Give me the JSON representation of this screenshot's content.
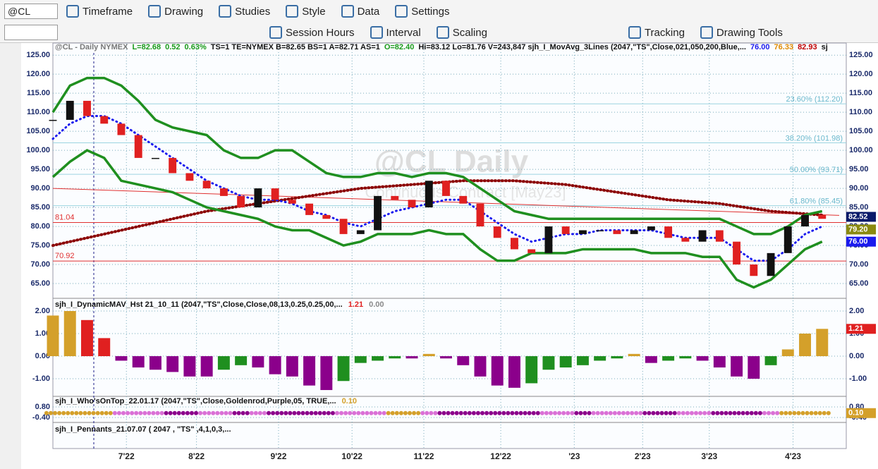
{
  "toolbar": {
    "symbol": "@CL",
    "row1": [
      "Timeframe",
      "Drawing",
      "Studies",
      "Style",
      "Data",
      "Settings"
    ],
    "row2": [
      "Session Hours",
      "Interval",
      "Scaling",
      "Tracking",
      "Drawing Tools"
    ]
  },
  "chart": {
    "header": [
      {
        "text": "@CL - Daily  NYMEX",
        "color": "#777"
      },
      {
        "text": "L=82.68",
        "color": "#1a9a1a"
      },
      {
        "text": "0.52",
        "color": "#1a9a1a"
      },
      {
        "text": "0.63%",
        "color": "#1a9a1a"
      },
      {
        "text": "TS=1  TE=NYMEX  B=82.65  BS=1  A=82.71  AS=1",
        "color": "#111"
      },
      {
        "text": "O=82.40",
        "color": "#1a9a1a"
      },
      {
        "text": "Hi=83.12  Lo=81.76  V=243,847  sjh_I_MovAvg_3Lines (2047,\"TS\",Close,021,050,200,Blue,...",
        "color": "#111"
      },
      {
        "text": "76.00",
        "color": "#1a1aee"
      },
      {
        "text": "76.33",
        "color": "#e08a00"
      },
      {
        "text": "82.93",
        "color": "#c00000"
      },
      {
        "text": "sj",
        "color": "#111"
      }
    ],
    "watermark": "@CL Daily",
    "watermark_sub": "Continuous Contract [May23]",
    "xlim": [
      0,
      46
    ],
    "xticks": [
      {
        "value": 4.3,
        "label": "7'22"
      },
      {
        "value": 8.4,
        "label": "8'22"
      },
      {
        "value": 13.2,
        "label": "9'22"
      },
      {
        "value": 17.5,
        "label": "10'22"
      },
      {
        "value": 21.7,
        "label": "11'22"
      },
      {
        "value": 26.2,
        "label": "12'22"
      },
      {
        "value": 30.5,
        "label": "'23"
      },
      {
        "value": 34.5,
        "label": "2'23"
      },
      {
        "value": 38.4,
        "label": "3'23"
      },
      {
        "value": 43.3,
        "label": "4'23"
      }
    ],
    "x": [
      0,
      1,
      2,
      3,
      4,
      5,
      6,
      7,
      8,
      9,
      10,
      11,
      12,
      13,
      14,
      15,
      16,
      17,
      18,
      19,
      20,
      21,
      22,
      23,
      24,
      25,
      26,
      27,
      28,
      29,
      30,
      31,
      32,
      33,
      34,
      35,
      36,
      37,
      38,
      39,
      40,
      41,
      42,
      43,
      44,
      45
    ],
    "price": {
      "ylim": [
        61.3,
        128
      ],
      "yticks": [
        {
          "value": 125,
          "label": "125.00"
        },
        {
          "value": 120,
          "label": "120.00"
        },
        {
          "value": 115,
          "label": "115.00"
        },
        {
          "value": 110,
          "label": "110.00"
        },
        {
          "value": 105,
          "label": "105.00"
        },
        {
          "value": 100,
          "label": "100.00"
        },
        {
          "value": 95,
          "label": "95.00"
        },
        {
          "value": 90,
          "label": "90.00"
        },
        {
          "value": 85,
          "label": "85.00"
        },
        {
          "value": 80,
          "label": "80.00"
        },
        {
          "value": 75,
          "label": "75.00"
        },
        {
          "value": 70,
          "label": "70.00"
        },
        {
          "value": 65,
          "label": "65.00"
        }
      ],
      "close": [
        108,
        113,
        109,
        107,
        104,
        98,
        98,
        94,
        92,
        90,
        88,
        85,
        90,
        87,
        86,
        83,
        82,
        78,
        79,
        88,
        87,
        85,
        92,
        88,
        86,
        80,
        77,
        74,
        73,
        80,
        78,
        79,
        79,
        78,
        79,
        80,
        77,
        76,
        79,
        76,
        70,
        67,
        73,
        80,
        83,
        82
      ],
      "up_color": "#111111",
      "down_color": "#e02020",
      "series": [
        {
          "color": "#1f8f1f",
          "width": 3.5,
          "dotted": false,
          "values": [
            110,
            117,
            119,
            119,
            117,
            113,
            108,
            106,
            105,
            104,
            100,
            98,
            98,
            100,
            100,
            97,
            94,
            93,
            93,
            94,
            94,
            93,
            94,
            94,
            93,
            90,
            87,
            84,
            83,
            82,
            82,
            82,
            82,
            82,
            82,
            82,
            82,
            82,
            82,
            82,
            80,
            78,
            78,
            80,
            83,
            84
          ]
        },
        {
          "color": "#1f8f1f",
          "width": 3.5,
          "dotted": false,
          "values": [
            93,
            97,
            100,
            98,
            92,
            91,
            90,
            89,
            87,
            85,
            84,
            83,
            82,
            80,
            79,
            79,
            77,
            75,
            76,
            78,
            78,
            78,
            79,
            78,
            78,
            74,
            71,
            71,
            73,
            73,
            73,
            74,
            74,
            74,
            74,
            73,
            73,
            73,
            72,
            72,
            66,
            64,
            66,
            70,
            74,
            76
          ]
        },
        {
          "color": "#1a1aee",
          "width": 3,
          "dotted": true,
          "values": [
            103,
            107,
            109,
            109,
            107,
            104,
            101,
            98,
            95,
            92,
            90,
            88,
            87,
            87,
            86,
            84,
            83,
            81,
            80,
            82,
            84,
            85,
            86,
            87,
            87,
            84,
            81,
            78,
            76,
            77,
            78,
            78,
            79,
            79,
            79,
            79,
            78,
            77,
            77,
            77,
            74,
            71,
            71,
            74,
            78,
            80
          ]
        }
      ],
      "ma200": {
        "color": "#8b0000",
        "x": [
          0,
          3,
          6,
          9,
          12,
          15,
          18,
          21,
          24,
          27,
          30,
          33,
          36,
          39,
          42,
          45
        ],
        "values": [
          75,
          78,
          81,
          84,
          86,
          88,
          90,
          91,
          92,
          92,
          91,
          89,
          87,
          86,
          84,
          83
        ]
      },
      "trendline": {
        "color": "#e03030",
        "x": [
          0,
          46
        ],
        "values": [
          90,
          82.9
        ]
      },
      "hlines": [
        {
          "value": 81.04,
          "color": "#e03030"
        },
        {
          "value": 70.92,
          "color": "#e03030"
        }
      ],
      "fib": [
        {
          "value": 112.2,
          "label": "23.60% (112.20)"
        },
        {
          "value": 101.98,
          "label": "38.20% (101.98)"
        },
        {
          "value": 93.71,
          "label": "50.00% (93.71)"
        },
        {
          "value": 85.45,
          "label": "61.80% (85.45)"
        }
      ],
      "flags": [
        {
          "value": 82.52,
          "label": "82.52",
          "color": "#0a1a6a"
        },
        {
          "value": 79.2,
          "label": "79.20",
          "color": "#8a8a10"
        },
        {
          "value": 76,
          "label": "76.00",
          "color": "#1a1aee"
        }
      ]
    },
    "histogram": {
      "title": "sjh_I_DynamicMAV_Hst 21_10_11 (2047,\"TS\",Close,Close,08,13,0.25,0.25,00,...",
      "readouts": [
        {
          "label": "1.21",
          "color": "#e02020"
        },
        {
          "label": "0.00",
          "color": "#888"
        }
      ],
      "ylim": [
        -1.78,
        2.5
      ],
      "yticks": [
        {
          "value": 2,
          "label": "2.00"
        },
        {
          "value": 1,
          "label": "1.00"
        },
        {
          "value": 0,
          "label": "0.00"
        },
        {
          "value": -1,
          "label": "-1.00"
        }
      ],
      "values": [
        1.8,
        2.0,
        1.6,
        0.8,
        -0.2,
        -0.5,
        -0.6,
        -0.7,
        -0.9,
        -0.9,
        -0.6,
        -0.4,
        -0.5,
        -0.8,
        -0.9,
        -1.3,
        -1.5,
        -1.1,
        -0.3,
        -0.2,
        -0.1,
        -0.1,
        0.1,
        -0.1,
        -0.4,
        -0.9,
        -1.3,
        -1.4,
        -1.2,
        -0.6,
        -0.5,
        -0.4,
        -0.2,
        -0.1,
        0.1,
        -0.3,
        -0.2,
        -0.1,
        -0.2,
        -0.5,
        -0.9,
        -1.0,
        -0.4,
        0.3,
        1.0,
        1.21
      ],
      "colors": {
        "up_rise": "#d4a02a",
        "up_fall": "#e02020",
        "down_fall": "#8b008b",
        "down_rise": "#1f8f1f"
      },
      "flag": {
        "value": 1.21,
        "label": "1.21",
        "color": "#e02020"
      }
    },
    "whos": {
      "title": "sjh_I_Who'sOnTop_22.01.17 (2047,\"TS\",Close,Goldenrod,Purple,05, TRUE,...",
      "readouts": [
        {
          "label": "0.10",
          "color": "#d4a02a"
        }
      ],
      "ylim": [
        -0.88,
        1.92
      ],
      "yticks": [
        {
          "value": 0.8,
          "label": "0.80"
        },
        {
          "value": -0.4,
          "label": "-0.40"
        }
      ],
      "value": 0.1,
      "palette": {
        "g": "#d4a02a",
        "p": "#8b008b",
        "k": "#da70d6"
      },
      "states": [
        "g",
        "g",
        "g",
        "g",
        "k",
        "k",
        "k",
        "p",
        "p",
        "k",
        "k",
        "p",
        "k",
        "p",
        "p",
        "p",
        "p",
        "k",
        "k",
        "k",
        "g",
        "g",
        "k",
        "p",
        "p",
        "p",
        "p",
        "p",
        "p",
        "k",
        "k",
        "p",
        "k",
        "k",
        "k",
        "p",
        "p",
        "k",
        "k",
        "p",
        "p",
        "p",
        "k",
        "g",
        "g",
        "g"
      ],
      "flag": {
        "value": 0.1,
        "label": "0.10",
        "color": "#d4a02a"
      }
    },
    "pennants": {
      "title": "sjh_I_Pennants_21.07.07 ( 2047 , \"TS\" ,4,1,0,3,..."
    }
  }
}
